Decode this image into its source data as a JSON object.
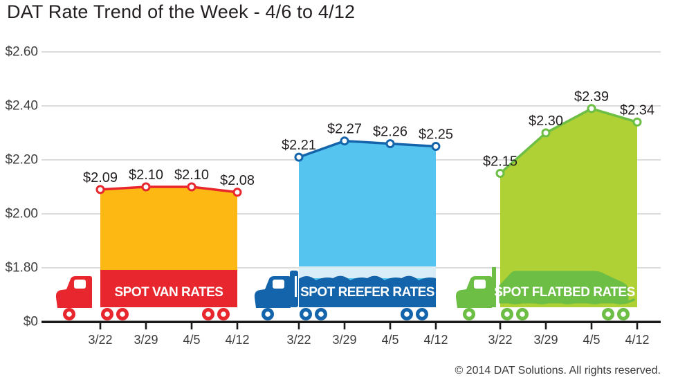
{
  "chart_data": {
    "type": "area",
    "title": "DAT Rate Trend of the Week - 4/6 to 4/12",
    "attribution": "© 2014 DAT Solutions. All rights reserved.",
    "categories": [
      "3/22",
      "3/29",
      "4/5",
      "4/12"
    ],
    "xlabel": "",
    "ylabel": "",
    "y_axis": {
      "tick_labels": [
        "$2.60",
        "$2.40",
        "$2.20",
        "$2.00",
        "$1.80",
        "$0"
      ],
      "tick_values": [
        2.6,
        2.4,
        2.2,
        2.0,
        1.8,
        0
      ],
      "display_range": [
        1.8,
        2.6
      ],
      "grid": true,
      "broken_axis_below": 1.8
    },
    "legend_position": "labels-inside-truck-bands",
    "series": [
      {
        "name": "SPOT VAN RATES",
        "style": "van",
        "values": [
          2.09,
          2.1,
          2.1,
          2.08
        ],
        "point_labels": [
          "$2.09",
          "$2.10",
          "$2.10",
          "$2.08"
        ],
        "area_color": "#FDB813",
        "accent_color": "#E8262D"
      },
      {
        "name": "SPOT REEFER RATES",
        "style": "reefer",
        "values": [
          2.21,
          2.27,
          2.26,
          2.25
        ],
        "point_labels": [
          "$2.21",
          "$2.27",
          "$2.26",
          "$2.25"
        ],
        "area_color": "#55C5EF",
        "accent_color": "#1464AB",
        "frost_color": "#D9EDF9"
      },
      {
        "name": "SPOT FLATBED RATES",
        "style": "flatbed",
        "values": [
          2.15,
          2.3,
          2.39,
          2.34
        ],
        "point_labels": [
          "$2.15",
          "$2.30",
          "$2.39",
          "$2.34"
        ],
        "area_color": "#AFD136",
        "accent_color": "#6CBE45"
      }
    ],
    "colors": {
      "grid": "#C8C8C8",
      "axis": "#1A1A1A",
      "value_text": "#231F20",
      "tick_text": "#3C3C3C",
      "band_text": "#FFFFFF"
    }
  }
}
